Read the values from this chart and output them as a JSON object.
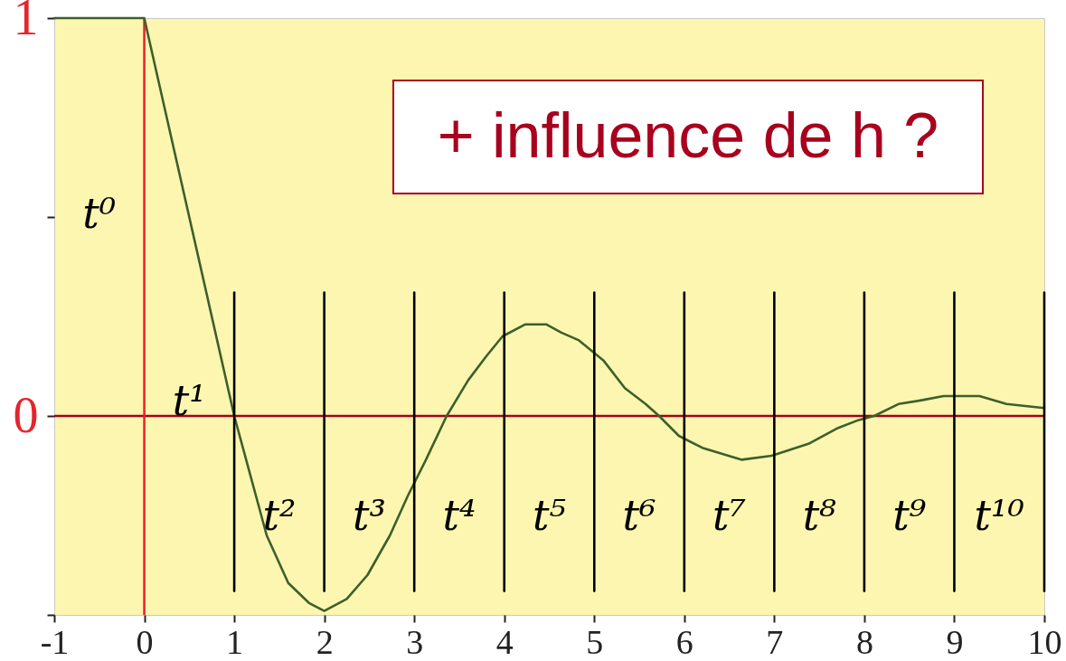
{
  "chart_data": {
    "type": "line",
    "xlim": [
      -1,
      10
    ],
    "xticks": [
      -1,
      0,
      1,
      2,
      3,
      4,
      5,
      6,
      7,
      8,
      9,
      10
    ],
    "ylim": [
      -0.5,
      1
    ],
    "yticks": [
      {
        "value": -0.5,
        "label": null
      },
      0,
      {
        "value": 0.5,
        "label": null
      },
      1
    ],
    "series": [
      {
        "color": "#3d5f2b",
        "x": [
          -1,
          0,
          0.5,
          1,
          1.36,
          1.6,
          1.83,
          2,
          2.25,
          2.48,
          2.73,
          2.93,
          3.13,
          3.36,
          3.6,
          3.8,
          3.98,
          4.23,
          4.47,
          4.63,
          4.83,
          5.1,
          5.34,
          5.57,
          5.72,
          5.94,
          6.2,
          6.64,
          6.97,
          7.11,
          7.38,
          7.71,
          7.94,
          8.11,
          8.38,
          8.65,
          8.88,
          9.28,
          9.58,
          10
        ],
        "values": [
          1,
          1,
          0.5,
          0,
          -0.3,
          -0.42,
          -0.47,
          -0.49,
          -0.46,
          -0.4,
          -0.3,
          -0.2,
          -0.11,
          0,
          0.09,
          0.15,
          0.2,
          0.23,
          0.23,
          0.21,
          0.19,
          0.14,
          0.07,
          0.03,
          0,
          -0.05,
          -0.08,
          -0.11,
          -0.1,
          -0.09,
          -0.07,
          -0.03,
          -0.01,
          0,
          0.03,
          0.04,
          0.05,
          0.05,
          0.03,
          0.02
        ]
      },
      {
        "color": "#000000",
        "x": [
          1,
          1
        ],
        "values": [
          0.31,
          -0.44
        ]
      },
      {
        "color": "#000000",
        "x": [
          2,
          2
        ],
        "values": [
          0.31,
          -0.44
        ]
      },
      {
        "color": "#000000",
        "x": [
          3,
          3
        ],
        "values": [
          0.31,
          -0.44
        ]
      },
      {
        "color": "#000000",
        "x": [
          4,
          4
        ],
        "values": [
          0.31,
          -0.44
        ]
      },
      {
        "color": "#000000",
        "x": [
          5,
          5
        ],
        "values": [
          0.31,
          -0.44
        ]
      },
      {
        "color": "#000000",
        "x": [
          6,
          6
        ],
        "values": [
          0.31,
          -0.44
        ]
      },
      {
        "color": "#000000",
        "x": [
          7,
          7
        ],
        "values": [
          0.31,
          -0.44
        ]
      },
      {
        "color": "#000000",
        "x": [
          8,
          8
        ],
        "values": [
          0.31,
          -0.44
        ]
      },
      {
        "color": "#000000",
        "x": [
          9,
          9
        ],
        "values": [
          0.31,
          -0.44
        ]
      },
      {
        "color": "#000000",
        "x": [
          10,
          10
        ],
        "values": [
          0.31,
          -0.44
        ]
      }
    ],
    "ref_lines": [
      {
        "axis": "y",
        "value": 0,
        "color": "#a8001e"
      },
      {
        "axis": "x",
        "value": 0,
        "color": "#e8202a"
      }
    ],
    "annotations": [
      "+ influence de h ?",
      "t⁰",
      "t¹",
      "t²",
      "t³",
      "t⁴",
      "t⁵",
      "t⁶",
      "t⁷",
      "t⁸",
      "t⁹",
      "t¹⁰"
    ]
  }
}
